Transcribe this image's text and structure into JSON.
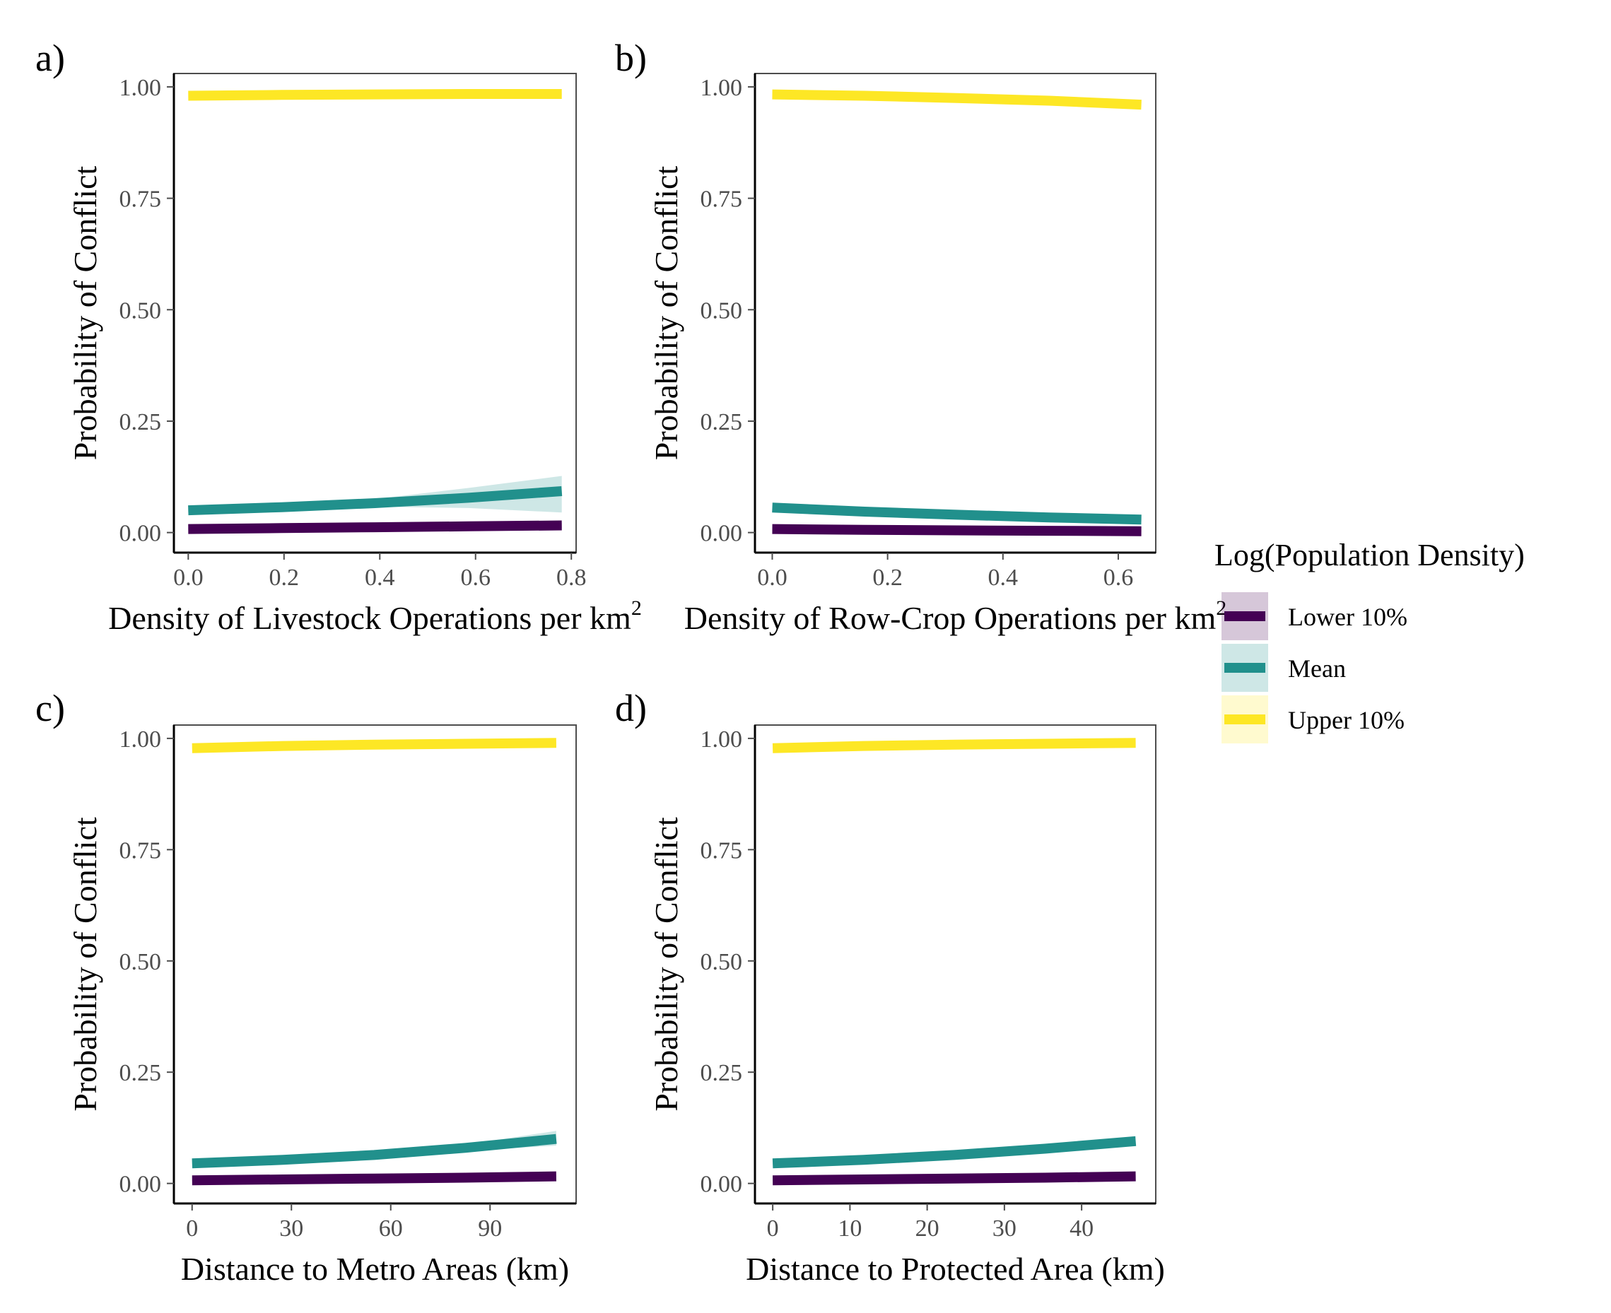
{
  "colors": {
    "lower": "#440154",
    "mean": "#21908C",
    "upper": "#FDE725",
    "axis": "#000000",
    "frame": "#4d4d4d",
    "tick_text": "#4d4d4d"
  },
  "legend": {
    "title": "Log(Population Density)",
    "items": [
      {
        "label": "Lower 10%",
        "color": "#440154"
      },
      {
        "label": "Mean",
        "color": "#21908C"
      },
      {
        "label": "Upper 10%",
        "color": "#FDE725"
      }
    ]
  },
  "chart_data": [
    {
      "type": "line",
      "panel": "a)",
      "xlabel": "Density of Livestock Operations per km",
      "xlabel_sup": "2",
      "ylabel": "Probability of Conflict",
      "xlim": [
        -0.03,
        0.81
      ],
      "ylim": [
        -0.045,
        1.03
      ],
      "xticks": [
        0.0,
        0.2,
        0.4,
        0.6,
        0.8
      ],
      "xtick_labels": [
        "0.0",
        "0.2",
        "0.4",
        "0.6",
        "0.8"
      ],
      "yticks": [
        0.0,
        0.25,
        0.5,
        0.75,
        1.0
      ],
      "ytick_labels": [
        "0.00",
        "0.25",
        "0.50",
        "0.75",
        "1.00"
      ],
      "x": [
        0.0,
        0.195,
        0.39,
        0.585,
        0.78
      ],
      "series": [
        {
          "name": "Lower 10%",
          "values": [
            0.008,
            0.01,
            0.012,
            0.014,
            0.016
          ],
          "lower": [
            0.006,
            0.008,
            0.009,
            0.01,
            0.01
          ],
          "upper": [
            0.01,
            0.012,
            0.015,
            0.018,
            0.022
          ]
        },
        {
          "name": "Mean",
          "values": [
            0.05,
            0.057,
            0.066,
            0.078,
            0.093
          ],
          "lower": [
            0.046,
            0.053,
            0.058,
            0.055,
            0.045
          ],
          "upper": [
            0.054,
            0.061,
            0.075,
            0.1,
            0.127
          ]
        },
        {
          "name": "Upper 10%",
          "values": [
            0.98,
            0.982,
            0.983,
            0.984,
            0.984
          ],
          "lower": [
            0.978,
            0.98,
            0.981,
            0.981,
            0.981
          ],
          "upper": [
            0.982,
            0.984,
            0.985,
            0.986,
            0.987
          ]
        }
      ]
    },
    {
      "type": "line",
      "panel": "b)",
      "xlabel": "Density of Row-Crop Operations per km",
      "xlabel_sup": "2",
      "ylabel": "Probability of Conflict",
      "xlim": [
        -0.03,
        0.665
      ],
      "ylim": [
        -0.045,
        1.03
      ],
      "xticks": [
        0.0,
        0.2,
        0.4,
        0.6
      ],
      "xtick_labels": [
        "0.0",
        "0.2",
        "0.4",
        "0.6"
      ],
      "yticks": [
        0.0,
        0.25,
        0.5,
        0.75,
        1.0
      ],
      "ytick_labels": [
        "0.00",
        "0.25",
        "0.50",
        "0.75",
        "1.00"
      ],
      "x": [
        0.0,
        0.16,
        0.32,
        0.48,
        0.64
      ],
      "series": [
        {
          "name": "Lower 10%",
          "values": [
            0.008,
            0.006,
            0.005,
            0.004,
            0.003
          ],
          "lower": [
            0.006,
            0.005,
            0.004,
            0.003,
            0.002
          ],
          "upper": [
            0.01,
            0.008,
            0.006,
            0.005,
            0.005
          ]
        },
        {
          "name": "Mean",
          "values": [
            0.056,
            0.047,
            0.04,
            0.034,
            0.029
          ],
          "lower": [
            0.052,
            0.044,
            0.037,
            0.031,
            0.025
          ],
          "upper": [
            0.06,
            0.05,
            0.043,
            0.037,
            0.034
          ]
        },
        {
          "name": "Upper 10%",
          "values": [
            0.983,
            0.98,
            0.975,
            0.969,
            0.96
          ],
          "lower": [
            0.981,
            0.978,
            0.972,
            0.965,
            0.954
          ],
          "upper": [
            0.985,
            0.982,
            0.978,
            0.973,
            0.966
          ]
        }
      ]
    },
    {
      "type": "line",
      "panel": "c)",
      "xlabel": "Distance to Metro Areas (km)",
      "xlabel_sup": "",
      "ylabel": "Probability of Conflict",
      "xlim": [
        -5.5,
        116
      ],
      "ylim": [
        -0.045,
        1.03
      ],
      "xticks": [
        0,
        30,
        60,
        90
      ],
      "xtick_labels": [
        "0",
        "30",
        "60",
        "90"
      ],
      "yticks": [
        0.0,
        0.25,
        0.5,
        0.75,
        1.0
      ],
      "ytick_labels": [
        "0.00",
        "0.25",
        "0.50",
        "0.75",
        "1.00"
      ],
      "x": [
        0,
        27.5,
        55,
        82.5,
        110
      ],
      "series": [
        {
          "name": "Lower 10%",
          "values": [
            0.007,
            0.009,
            0.011,
            0.013,
            0.016
          ],
          "lower": [
            0.006,
            0.008,
            0.01,
            0.011,
            0.013
          ],
          "upper": [
            0.008,
            0.01,
            0.012,
            0.015,
            0.019
          ]
        },
        {
          "name": "Mean",
          "values": [
            0.045,
            0.053,
            0.064,
            0.08,
            0.1
          ],
          "lower": [
            0.042,
            0.05,
            0.06,
            0.073,
            0.085
          ],
          "upper": [
            0.048,
            0.056,
            0.068,
            0.087,
            0.118
          ]
        },
        {
          "name": "Upper 10%",
          "values": [
            0.978,
            0.983,
            0.986,
            0.988,
            0.99
          ],
          "lower": [
            0.976,
            0.981,
            0.984,
            0.986,
            0.987
          ],
          "upper": [
            0.98,
            0.985,
            0.988,
            0.99,
            0.992
          ]
        }
      ]
    },
    {
      "type": "line",
      "panel": "d)",
      "xlabel": "Distance to Protected Area (km)",
      "xlabel_sup": "",
      "ylabel": "Probability of Conflict",
      "xlim": [
        -2.3,
        49.6
      ],
      "ylim": [
        -0.045,
        1.03
      ],
      "xticks": [
        0,
        10,
        20,
        30,
        40
      ],
      "xtick_labels": [
        "0",
        "10",
        "20",
        "30",
        "40"
      ],
      "yticks": [
        0.0,
        0.25,
        0.5,
        0.75,
        1.0
      ],
      "ytick_labels": [
        "0.00",
        "0.25",
        "0.50",
        "0.75",
        "1.00"
      ],
      "x": [
        0,
        11.75,
        23.5,
        35.25,
        47
      ],
      "series": [
        {
          "name": "Lower 10%",
          "values": [
            0.007,
            0.009,
            0.011,
            0.013,
            0.016
          ],
          "lower": [
            0.006,
            0.008,
            0.01,
            0.011,
            0.013
          ],
          "upper": [
            0.008,
            0.01,
            0.012,
            0.015,
            0.019
          ]
        },
        {
          "name": "Mean",
          "values": [
            0.045,
            0.053,
            0.064,
            0.078,
            0.095
          ],
          "lower": [
            0.042,
            0.05,
            0.06,
            0.072,
            0.085
          ],
          "upper": [
            0.048,
            0.056,
            0.068,
            0.084,
            0.106
          ]
        },
        {
          "name": "Upper 10%",
          "values": [
            0.978,
            0.983,
            0.986,
            0.988,
            0.99
          ],
          "lower": [
            0.976,
            0.981,
            0.984,
            0.986,
            0.987
          ],
          "upper": [
            0.98,
            0.985,
            0.988,
            0.99,
            0.992
          ]
        }
      ]
    }
  ]
}
